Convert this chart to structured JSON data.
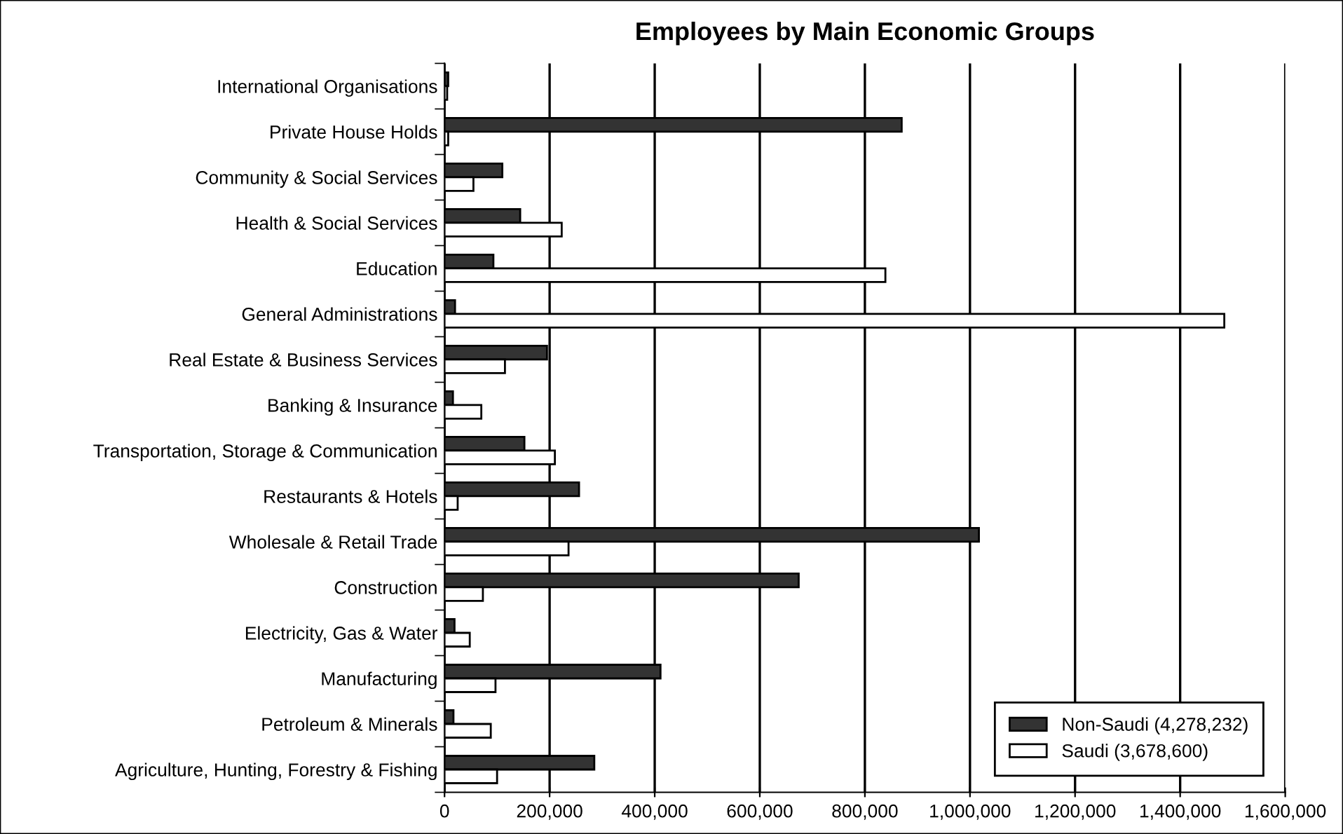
{
  "chart_data": {
    "type": "bar",
    "orientation": "horizontal",
    "title": "Employees by Main Economic Groups",
    "categories": [
      "International Organisations",
      "Private House Holds",
      "Community & Social Services",
      "Health & Social Services",
      "Education",
      "General Administrations",
      "Real Estate & Business Services",
      "Banking & Insurance",
      "Transportation, Storage & Communication",
      "Restaurants & Hotels",
      "Wholesale & Retail Trade",
      "Construction",
      "Electricity, Gas & Water",
      "Manufacturing",
      "Petroleum & Minerals",
      "Agriculture, Hunting, Forestry & Fishing"
    ],
    "series": [
      {
        "name": "Non-Saudi (4,278,232)",
        "color": "#333333",
        "values": [
          7000,
          870000,
          110000,
          144000,
          93000,
          20000,
          195000,
          16000,
          152000,
          256000,
          1017000,
          674000,
          19000,
          411000,
          17000,
          285000
        ]
      },
      {
        "name": "Saudi (3,678,600)",
        "color": "#ffffff",
        "values": [
          5000,
          7000,
          55000,
          223000,
          839000,
          1484000,
          115000,
          70000,
          210000,
          25000,
          236000,
          73000,
          48000,
          97000,
          88000,
          100000
        ]
      }
    ],
    "xlim": [
      0,
      1600000
    ],
    "xticks": [
      {
        "value": 0,
        "label": "0"
      },
      {
        "value": 200000,
        "label": "200,000"
      },
      {
        "value": 400000,
        "label": "400,000"
      },
      {
        "value": 600000,
        "label": "600,000"
      },
      {
        "value": 800000,
        "label": "800,000"
      },
      {
        "value": 1000000,
        "label": "1,000,000"
      },
      {
        "value": 1200000,
        "label": "1,200,000"
      },
      {
        "value": 1400000,
        "label": "1,400,000"
      },
      {
        "value": 1600000,
        "label": "1,600,000"
      }
    ],
    "grid": "x",
    "legend": "bottom right"
  }
}
